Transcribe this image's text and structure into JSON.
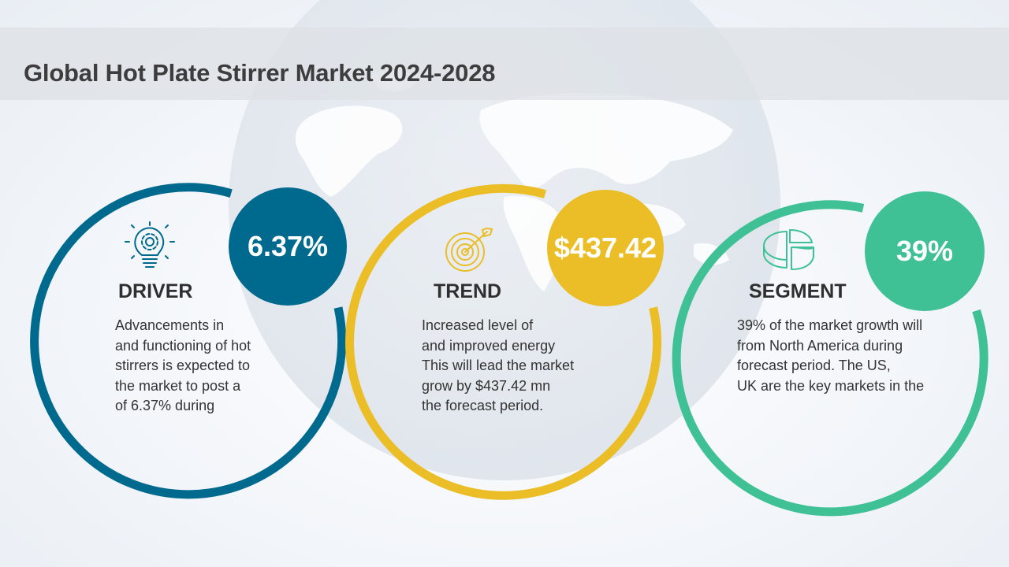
{
  "page": {
    "title": "Global Hot Plate Stirrer Market 2024-2028"
  },
  "colors": {
    "driver": "#006a8e",
    "trend": "#ebbd27",
    "segment": "#40c195",
    "title": "#3d3d3d"
  },
  "cards": [
    {
      "heading": "DRIVER",
      "badge": "6.37%",
      "icon": "lightbulb-gear-icon",
      "lines": [
        "Advancements in",
        "and functioning of hot",
        "stirrers is expected to",
        "the market to post a",
        "of 6.37% during"
      ]
    },
    {
      "heading": "TREND",
      "badge": "$437.42",
      "icon": "target-arrow-icon",
      "lines": [
        "Increased level of",
        "and improved energy",
        "This will lead the market",
        "grow by $437.42 mn",
        "the forecast period."
      ]
    },
    {
      "heading": "SEGMENT",
      "badge": "39%",
      "icon": "pie-chart-icon",
      "lines": [
        "39% of the market growth will",
        "from North America during",
        "forecast period. The US,",
        "UK are the key markets in the"
      ]
    }
  ]
}
